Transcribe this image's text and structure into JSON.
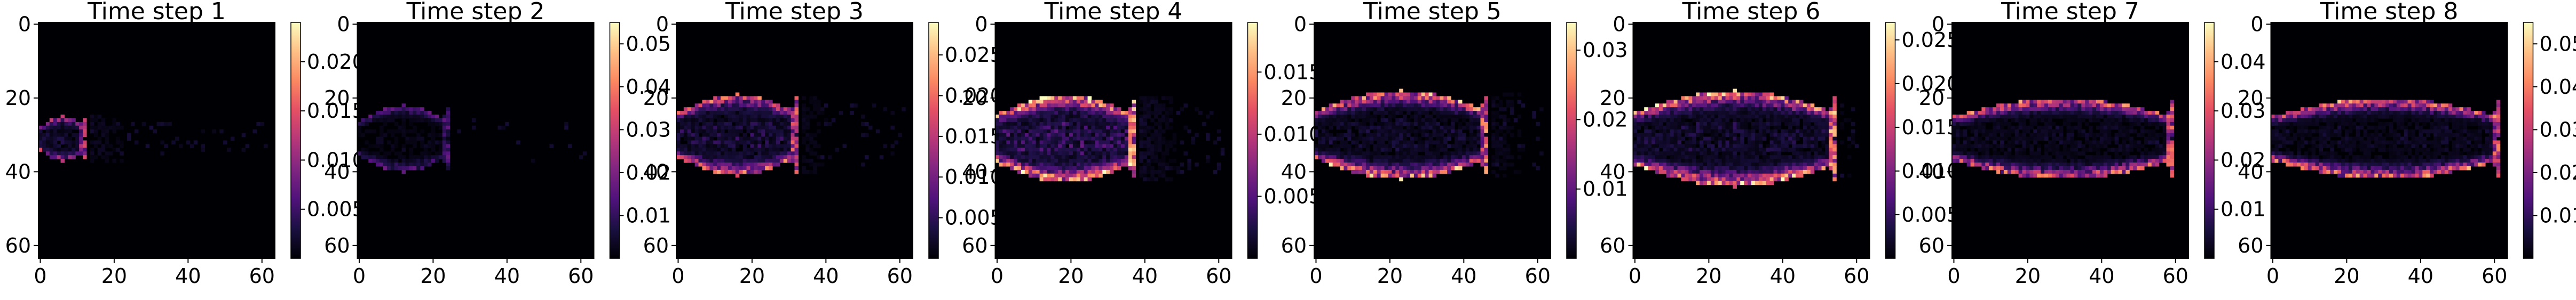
{
  "figure": {
    "panel_count": 8,
    "colormap": "magma"
  },
  "chart_data": [
    {
      "type": "heatmap",
      "title": "Time step 1",
      "grid_size": 64,
      "xlim": [
        0,
        64
      ],
      "ylim": [
        64,
        0
      ],
      "x_ticks": [
        "0",
        "20",
        "40",
        "60"
      ],
      "y_ticks": [
        "0",
        "20",
        "40",
        "60"
      ],
      "colorbar": {
        "min": 0,
        "max": 0.024,
        "ticks": [
          0.005,
          0.01,
          0.015,
          0.02
        ],
        "tick_labels": [
          "0.005",
          "0.010",
          "0.015",
          "0.020"
        ]
      },
      "feature": {
        "kind": "plume",
        "head_x": 13,
        "half_width": 6,
        "center_y": 31,
        "intensity": 0.6,
        "fill": 0.25,
        "tail": 0.35
      }
    },
    {
      "type": "heatmap",
      "title": "Time step 2",
      "grid_size": 64,
      "xlim": [
        0,
        64
      ],
      "ylim": [
        64,
        0
      ],
      "x_ticks": [
        "0",
        "20",
        "40",
        "60"
      ],
      "y_ticks": [
        "0",
        "20",
        "40",
        "60"
      ],
      "colorbar": {
        "min": 0,
        "max": 0.055,
        "ticks": [
          0.01,
          0.02,
          0.03,
          0.04,
          0.05
        ],
        "tick_labels": [
          "0.01",
          "0.02",
          "0.03",
          "0.04",
          "0.05"
        ]
      },
      "feature": {
        "kind": "plume",
        "head_x": 25,
        "half_width": 9,
        "center_y": 31,
        "intensity": 0.3,
        "fill": 0.1,
        "tail": 0.1
      }
    },
    {
      "type": "heatmap",
      "title": "Time step 3",
      "grid_size": 64,
      "xlim": [
        0,
        64
      ],
      "ylim": [
        64,
        0
      ],
      "x_ticks": [
        "0",
        "20",
        "40",
        "60"
      ],
      "y_ticks": [
        "0",
        "20",
        "40",
        "60"
      ],
      "colorbar": {
        "min": 0,
        "max": 0.029,
        "ticks": [
          0.005,
          0.01,
          0.015,
          0.02,
          0.025
        ],
        "tick_labels": [
          "0.005",
          "0.010",
          "0.015",
          "0.020",
          "0.025"
        ]
      },
      "feature": {
        "kind": "plume",
        "head_x": 33,
        "half_width": 11,
        "center_y": 30,
        "intensity": 0.7,
        "fill": 0.3,
        "tail": 0.25
      }
    },
    {
      "type": "heatmap",
      "title": "Time step 4",
      "grid_size": 64,
      "xlim": [
        0,
        64
      ],
      "ylim": [
        64,
        0
      ],
      "x_ticks": [
        "0",
        "20",
        "40",
        "60"
      ],
      "y_ticks": [
        "0",
        "20",
        "40",
        "60"
      ],
      "colorbar": {
        "min": 0,
        "max": 0.019,
        "ticks": [
          0.005,
          0.01,
          0.015
        ],
        "tick_labels": [
          "0.005",
          "0.010",
          "0.015"
        ]
      },
      "feature": {
        "kind": "plume",
        "head_x": 38,
        "half_width": 12,
        "center_y": 31,
        "intensity": 0.95,
        "fill": 0.45,
        "tail": 0.4
      }
    },
    {
      "type": "heatmap",
      "title": "Time step 5",
      "grid_size": 64,
      "xlim": [
        0,
        64
      ],
      "ylim": [
        64,
        0
      ],
      "x_ticks": [
        "0",
        "20",
        "40",
        "60"
      ],
      "y_ticks": [
        "0",
        "20",
        "40",
        "60"
      ],
      "colorbar": {
        "min": 0,
        "max": 0.034,
        "ticks": [
          0.01,
          0.02,
          0.03
        ],
        "tick_labels": [
          "0.01",
          "0.02",
          "0.03"
        ]
      },
      "feature": {
        "kind": "plume",
        "head_x": 47,
        "half_width": 12,
        "center_y": 30,
        "intensity": 0.85,
        "fill": 0.2,
        "tail": 0.3
      }
    },
    {
      "type": "heatmap",
      "title": "Time step 6",
      "grid_size": 64,
      "xlim": [
        0,
        64
      ],
      "ylim": [
        64,
        0
      ],
      "x_ticks": [
        "0",
        "20",
        "40",
        "60"
      ],
      "y_ticks": [
        "0",
        "20",
        "40",
        "60"
      ],
      "colorbar": {
        "min": 0,
        "max": 0.027,
        "ticks": [
          0.005,
          0.01,
          0.015,
          0.02,
          0.025
        ],
        "tick_labels": [
          "0.005",
          "0.010",
          "0.015",
          "0.020",
          "0.025"
        ]
      },
      "feature": {
        "kind": "plume",
        "head_x": 55,
        "half_width": 13,
        "center_y": 31,
        "intensity": 0.9,
        "fill": 0.25,
        "tail": 0.15
      }
    },
    {
      "type": "heatmap",
      "title": "Time step 7",
      "grid_size": 64,
      "xlim": [
        0,
        64
      ],
      "ylim": [
        64,
        0
      ],
      "x_ticks": [
        "0",
        "20",
        "40",
        "60"
      ],
      "y_ticks": [
        "0",
        "20",
        "40",
        "60"
      ],
      "colorbar": {
        "min": 0,
        "max": 0.048,
        "ticks": [
          0.01,
          0.02,
          0.03,
          0.04
        ],
        "tick_labels": [
          "0.01",
          "0.02",
          "0.03",
          "0.04"
        ]
      },
      "feature": {
        "kind": "plume",
        "head_x": 60,
        "half_width": 11,
        "center_y": 31,
        "intensity": 0.75,
        "fill": 0.15,
        "tail": 0.1
      }
    },
    {
      "type": "heatmap",
      "title": "Time step 8",
      "grid_size": 64,
      "xlim": [
        0,
        64
      ],
      "ylim": [
        64,
        0
      ],
      "x_ticks": [
        "0",
        "20",
        "40",
        "60"
      ],
      "y_ticks": [
        "0",
        "20",
        "40",
        "60"
      ],
      "colorbar": {
        "min": 0,
        "max": 0.055,
        "ticks": [
          0.01,
          0.02,
          0.03,
          0.04,
          0.05
        ],
        "tick_labels": [
          "0.01",
          "0.02",
          "0.03",
          "0.04",
          "0.05"
        ]
      },
      "feature": {
        "kind": "plume",
        "head_x": 62,
        "half_width": 11,
        "center_y": 31,
        "intensity": 0.8,
        "fill": 0.15,
        "tail": 0.1
      }
    }
  ]
}
